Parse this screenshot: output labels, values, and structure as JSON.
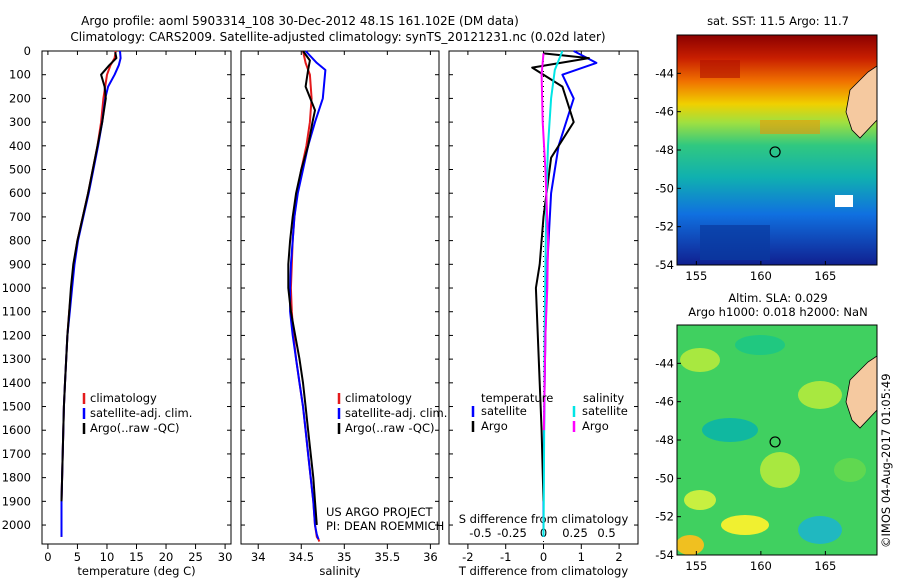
{
  "header": {
    "title_line1": "Argo profile: aoml 5903314_108 30-Dec-2012 48.1S 161.102E (DM data)",
    "title_line2": "Climatology: CARS2009. Satellite-adjusted climatology: synTS_20121231.nc (0.02d later)"
  },
  "colors": {
    "climatology": "#e41a1c",
    "satellite": "#0000ff",
    "argo": "#000000",
    "salinity_satellite": "#00e5e5",
    "salinity_argo": "#ff00ff"
  },
  "credits": {
    "line1": "US ARGO PROJECT",
    "line2": "PI: DEAN ROEMMICH",
    "watermark": "©IMOS 04-Aug-2017 01:05:49"
  },
  "chart_data": [
    {
      "type": "line",
      "xlabel": "temperature (deg C)",
      "ylabel": "",
      "xlim": [
        -1,
        31
      ],
      "ylim": [
        2080,
        0
      ],
      "xticks": [
        0,
        5,
        10,
        15,
        20,
        25,
        30
      ],
      "yticks": [
        0,
        100,
        200,
        300,
        400,
        500,
        600,
        700,
        800,
        900,
        1000,
        1100,
        1200,
        1300,
        1400,
        1500,
        1600,
        1700,
        1800,
        1900,
        2000
      ],
      "legend": [
        "climatology",
        "satellite-adj. clim.",
        "Argo(..raw -QC)"
      ],
      "legend_position": "lower-right",
      "series": [
        {
          "name": "climatology",
          "color": "#e41a1c",
          "x": [
            11.5,
            11.3,
            10.6,
            10.0,
            9.7,
            9.4,
            9.0,
            8.4,
            7.6,
            6.8,
            5.9,
            5.0,
            4.4,
            4.0,
            3.6,
            3.3,
            3.1,
            2.9,
            2.7,
            2.6,
            2.5,
            2.4,
            2.3,
            2.3
          ],
          "y": [
            0,
            30,
            60,
            100,
            150,
            200,
            300,
            400,
            500,
            600,
            700,
            800,
            900,
            1000,
            1100,
            1200,
            1300,
            1400,
            1500,
            1600,
            1700,
            1800,
            1900,
            2050
          ]
        },
        {
          "name": "satellite-adj. clim.",
          "color": "#0000ff",
          "x": [
            12.2,
            12.3,
            12.0,
            11.3,
            10.2,
            9.7,
            9.2,
            8.5,
            7.7,
            6.9,
            6.0,
            5.1,
            4.5,
            4.1,
            3.7,
            3.3,
            3.1,
            2.9,
            2.7,
            2.6,
            2.5,
            2.4,
            2.3,
            2.3
          ],
          "y": [
            0,
            30,
            60,
            100,
            150,
            200,
            300,
            400,
            500,
            600,
            700,
            800,
            900,
            1000,
            1100,
            1200,
            1300,
            1400,
            1500,
            1600,
            1700,
            1800,
            1900,
            2050
          ]
        },
        {
          "name": "Argo(..raw -QC)",
          "color": "#000000",
          "x": [
            11.4,
            11.6,
            10.4,
            9.0,
            9.6,
            9.8,
            9.2,
            8.4,
            7.6,
            6.8,
            5.9,
            5.0,
            4.3,
            3.9,
            3.6,
            3.3,
            3.1,
            2.9,
            2.7,
            2.6,
            2.5,
            2.4,
            2.3
          ],
          "y": [
            5,
            30,
            60,
            100,
            150,
            200,
            300,
            400,
            500,
            600,
            700,
            800,
            900,
            1000,
            1100,
            1200,
            1300,
            1400,
            1500,
            1600,
            1700,
            1800,
            1900
          ]
        }
      ]
    },
    {
      "type": "line",
      "xlabel": "salinity",
      "ylabel": "",
      "xlim": [
        33.8,
        36.1
      ],
      "ylim": [
        2080,
        0
      ],
      "xticks": [
        34,
        34.5,
        35,
        35.5,
        36
      ],
      "legend": [
        "climatology",
        "satellite-adj. clim.",
        "Argo(..raw -QC)"
      ],
      "legend_position": "lower-right",
      "series": [
        {
          "name": "climatology",
          "color": "#e41a1c",
          "x": [
            34.52,
            34.55,
            34.6,
            34.62,
            34.6,
            34.56,
            34.5,
            34.45,
            34.42,
            34.4,
            34.39,
            34.38,
            34.39,
            34.41,
            34.44,
            34.48,
            34.52,
            34.55,
            34.58,
            34.61,
            34.64,
            34.66,
            34.68,
            34.7,
            34.71
          ],
          "y": [
            0,
            50,
            100,
            200,
            300,
            400,
            500,
            600,
            700,
            800,
            900,
            1000,
            1100,
            1200,
            1300,
            1400,
            1500,
            1600,
            1700,
            1800,
            1900,
            2000,
            2050,
            2060,
            2070
          ]
        },
        {
          "name": "satellite-adj. clim.",
          "color": "#0000ff",
          "x": [
            34.55,
            34.68,
            34.78,
            34.75,
            34.66,
            34.58,
            34.52,
            34.46,
            34.42,
            34.4,
            34.38,
            34.37,
            34.37,
            34.4,
            34.44,
            34.48,
            34.52,
            34.55,
            34.58,
            34.61,
            34.64,
            34.66,
            34.68,
            34.7
          ],
          "y": [
            0,
            50,
            80,
            200,
            300,
            400,
            500,
            600,
            700,
            800,
            900,
            1000,
            1100,
            1200,
            1300,
            1400,
            1500,
            1600,
            1700,
            1800,
            1900,
            2000,
            2040,
            2060
          ]
        },
        {
          "name": "Argo(..raw -QC)",
          "color": "#000000",
          "x": [
            34.52,
            34.6,
            34.58,
            34.55,
            34.66,
            34.63,
            34.58,
            34.5,
            34.44,
            34.4,
            34.37,
            34.35,
            34.35,
            34.38,
            34.43,
            34.48,
            34.52,
            34.55,
            34.58,
            34.61,
            34.64,
            34.66,
            34.68
          ],
          "y": [
            0,
            40,
            80,
            150,
            250,
            300,
            400,
            500,
            600,
            700,
            800,
            900,
            1000,
            1100,
            1200,
            1300,
            1400,
            1500,
            1600,
            1700,
            1800,
            1900,
            2000
          ]
        }
      ]
    },
    {
      "type": "line",
      "xlabel": "T difference from climatology",
      "xlabel_secondary": "S difference from climatology",
      "xlim": [
        -2.5,
        2.5
      ],
      "ylim": [
        2080,
        0
      ],
      "xticks": [
        -2,
        -1,
        0,
        1,
        2
      ],
      "xticks_secondary": [
        "-0.5",
        "-0.25",
        "0",
        "0.25",
        "0.5"
      ],
      "legend_headers": [
        "temperature",
        "salinity"
      ],
      "legend": [
        "satellite",
        "Argo",
        "satellite",
        "Argo"
      ],
      "legend_position": "lower-center",
      "series": [
        {
          "name": "temperature satellite",
          "color": "#0000ff",
          "x": [
            0.8,
            1.4,
            0.5,
            0.8,
            0.4,
            0.2,
            0.1,
            0.05,
            0.02,
            0.0,
            0.0
          ],
          "y": [
            0,
            50,
            100,
            200,
            400,
            600,
            900,
            1200,
            1500,
            1800,
            2050
          ]
        },
        {
          "name": "temperature Argo",
          "color": "#000000",
          "x": [
            0.0,
            1.2,
            -0.3,
            0.5,
            0.8,
            0.2,
            0.0,
            -0.1,
            -0.2,
            -0.15,
            -0.1,
            -0.05,
            0.0
          ],
          "y": [
            10,
            30,
            70,
            150,
            300,
            450,
            700,
            900,
            1000,
            1200,
            1400,
            1600,
            1900
          ]
        },
        {
          "name": "salinity satellite",
          "color": "#00e5e5",
          "x": [
            0.5,
            0.3,
            0.2,
            0.12,
            0.08,
            0.05,
            0.03,
            0.02,
            0.01,
            0.0
          ],
          "y": [
            0,
            80,
            200,
            400,
            600,
            900,
            1200,
            1500,
            1800,
            2050
          ]
        },
        {
          "name": "salinity Argo",
          "color": "#ff00ff",
          "x": [
            0.0,
            -0.05,
            -0.02,
            0.05,
            0.12,
            0.1,
            0.05,
            0.03,
            0.02,
            0.01
          ],
          "y": [
            10,
            100,
            300,
            500,
            800,
            1000,
            1200,
            1400,
            1500,
            1600
          ]
        }
      ]
    },
    {
      "type": "heatmap",
      "title": "sat. SST: 11.5 Argo: 11.7",
      "xlim": [
        153.5,
        169
      ],
      "ylim": [
        -54,
        -42
      ],
      "xticks": [
        155,
        160,
        165
      ],
      "yticks": [
        -44,
        -46,
        -48,
        -50,
        -52,
        -54
      ],
      "marker": {
        "lon": 161.102,
        "lat": -48.1
      }
    },
    {
      "type": "heatmap",
      "title": "Altim. SLA: 0.029",
      "subtitle": "Argo h1000: 0.018 h2000: NaN",
      "xlim": [
        153.5,
        169
      ],
      "ylim": [
        -54,
        -42
      ],
      "xticks": [
        155,
        160,
        165
      ],
      "yticks": [
        -44,
        -46,
        -48,
        -50,
        -52,
        -54
      ],
      "marker": {
        "lon": 161.102,
        "lat": -48.1
      }
    }
  ]
}
